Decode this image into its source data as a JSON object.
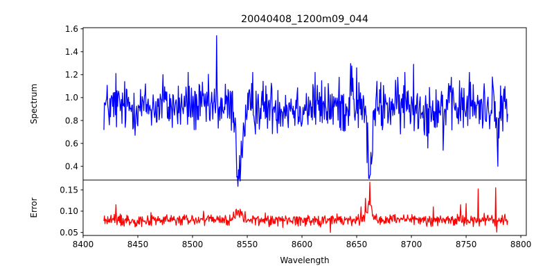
{
  "chart_data": {
    "type": "line",
    "title": "20040408_1200m09_044",
    "xlabel": "Wavelength",
    "xlim": [
      8400,
      8805
    ],
    "xticks": [
      8400,
      8450,
      8500,
      8550,
      8600,
      8650,
      8700,
      8750,
      8800
    ],
    "grid": false,
    "legend": "none",
    "x_range": [
      8419,
      8788
    ],
    "panels": [
      {
        "id": "spectrum",
        "ylabel": "Spectrum",
        "ylim": [
          0.28,
          1.61
        ],
        "yticks": [
          0.4,
          0.6,
          0.8,
          1.0,
          1.2,
          1.4,
          1.6
        ],
        "ytick_labels": [
          "0.4",
          "0.6",
          "0.8",
          "1.0",
          "1.2",
          "1.4",
          "1.6"
        ],
        "series": [
          {
            "color": "#0000ff",
            "baseline": 0.92,
            "noise": 0.11,
            "features": [
              {
                "center": 8542,
                "depth": 0.5,
                "width": 1.6
              },
              {
                "center": 8662,
                "depth": 0.58,
                "width": 2.0
              },
              {
                "center": 8645,
                "depth": -0.3,
                "width": 0.9
              },
              {
                "center": 8779,
                "depth": 0.45,
                "width": 0.8
              },
              {
                "center": 8545,
                "depth": 0.25,
                "width": 3.5
              }
            ],
            "spikes": [
              {
                "x": 8522,
                "y": 1.54
              },
              {
                "x": 8430,
                "y": 1.21
              },
              {
                "x": 8473,
                "y": 1.2
              },
              {
                "x": 8496,
                "y": 1.22
              },
              {
                "x": 8555,
                "y": 1.22
              },
              {
                "x": 8612,
                "y": 1.22
              },
              {
                "x": 8650,
                "y": 1.26
              },
              {
                "x": 8702,
                "y": 1.29
              },
              {
                "x": 8694,
                "y": 1.22
              },
              {
                "x": 8753,
                "y": 1.22
              },
              {
                "x": 8774,
                "y": 1.18
              },
              {
                "x": 8715,
                "y": 0.56
              },
              {
                "x": 8729,
                "y": 0.54
              },
              {
                "x": 8542,
                "y": 0.37
              },
              {
                "x": 8662,
                "y": 0.32
              },
              {
                "x": 8779,
                "y": 0.4
              }
            ]
          }
        ]
      },
      {
        "id": "error",
        "ylabel": "Error",
        "ylim": [
          0.043,
          0.173
        ],
        "yticks": [
          0.05,
          0.1,
          0.15
        ],
        "ytick_labels": [
          "0.05",
          "0.10",
          "0.15"
        ],
        "series": [
          {
            "color": "#ff0000",
            "baseline": 0.079,
            "noise": 0.007,
            "features": [
              {
                "center": 8662,
                "depth": -0.035,
                "width": 2.5
              },
              {
                "center": 8542,
                "depth": -0.018,
                "width": 3.0
              }
            ],
            "spikes": [
              {
                "x": 8662,
                "y": 0.168
              },
              {
                "x": 8658,
                "y": 0.13
              },
              {
                "x": 8430,
                "y": 0.115
              },
              {
                "x": 8761,
                "y": 0.152
              },
              {
                "x": 8777,
                "y": 0.155
              },
              {
                "x": 8745,
                "y": 0.115
              },
              {
                "x": 8750,
                "y": 0.118
              },
              {
                "x": 8654,
                "y": 0.11
              },
              {
                "x": 8626,
                "y": 0.05
              },
              {
                "x": 8778,
                "y": 0.051
              },
              {
                "x": 8720,
                "y": 0.11
              },
              {
                "x": 8510,
                "y": 0.1
              }
            ]
          }
        ]
      }
    ]
  }
}
